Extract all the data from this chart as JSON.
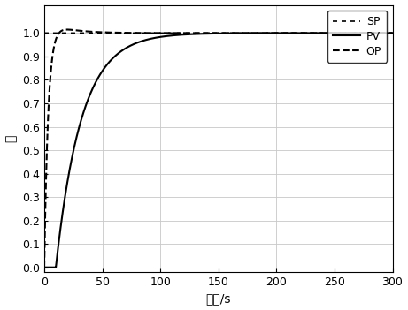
{
  "title": "",
  "xlabel": "时间/s",
  "ylabel": "値",
  "xlim": [
    0,
    300
  ],
  "ylim": [
    -0.02,
    1.12
  ],
  "yticks": [
    0,
    0.1,
    0.2,
    0.3,
    0.4,
    0.5,
    0.6,
    0.7,
    0.8,
    0.9,
    1.0
  ],
  "xticks": [
    0,
    50,
    100,
    150,
    200,
    250,
    300
  ],
  "line_color": "#000000",
  "legend_labels": [
    "SP",
    "PV",
    "OP"
  ],
  "background_color": "#ffffff",
  "plot_bg_color": "#ffffff",
  "grid_color": "#c8c8c8",
  "dead_time": 10,
  "tau_pv": 22,
  "tau_op_rise": 3.5,
  "op_overshoot": 0.055,
  "op_decay_tau": 18.0
}
